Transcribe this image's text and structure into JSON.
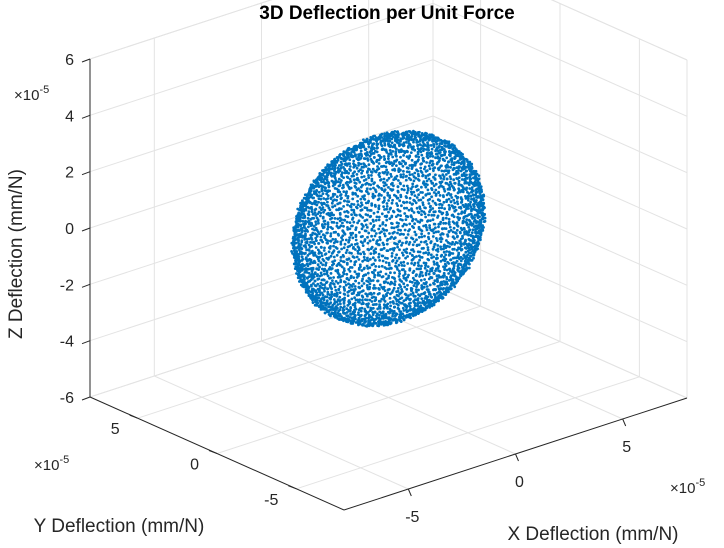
{
  "chart_data": {
    "type": "scatter",
    "dimensions": 3,
    "title": "3D Deflection per Unit Force",
    "xlabel": "X Deflection (mm/N)",
    "ylabel": "Y Deflection (mm/N)",
    "zlabel": "Z Deflection (mm/N)",
    "x_exponent": "×10",
    "x_exponent_power": "-5",
    "y_exponent": "×10",
    "y_exponent_power": "-5",
    "z_exponent": "×10",
    "z_exponent_power": "-5",
    "x_ticks": [
      "-5",
      "0",
      "5"
    ],
    "y_ticks": [
      "-5",
      "0",
      "5"
    ],
    "z_ticks": [
      "-6",
      "-4",
      "-2",
      "0",
      "2",
      "4",
      "6"
    ],
    "xlim": [
      -8,
      8
    ],
    "ylim": [
      -8,
      8
    ],
    "zlim": [
      -6,
      6
    ],
    "grid": true,
    "marker_color": "#0072BD",
    "series": [
      {
        "shape": "ellipsoid_point_cloud",
        "center": [
          0,
          0,
          0
        ],
        "semi_axes": [
          4.0,
          2.6,
          3.2
        ]
      }
    ]
  }
}
